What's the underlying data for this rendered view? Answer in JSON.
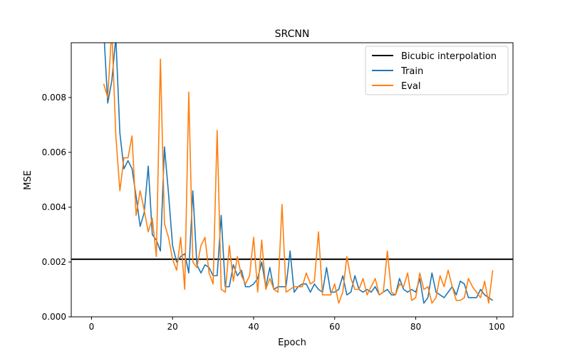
{
  "chart_data": {
    "type": "line",
    "title": "SRCNN",
    "xlabel": "Epoch",
    "ylabel": "MSE",
    "xlim": [
      -5,
      104
    ],
    "ylim": [
      0,
      0.01
    ],
    "xticks": [
      0,
      20,
      40,
      60,
      80,
      100
    ],
    "xtick_labels": [
      "0",
      "20",
      "40",
      "60",
      "80",
      "100"
    ],
    "yticks": [
      0,
      0.002,
      0.004,
      0.006,
      0.008
    ],
    "ytick_labels": [
      "0.000",
      "0.002",
      "0.004",
      "0.006",
      "0.008"
    ],
    "grid": false,
    "legend_position": "top-right",
    "hline": {
      "name": "Bicubic interpolation",
      "value": 0.0021,
      "color": "#000000"
    },
    "series": [
      {
        "name": "Train",
        "color": "#1f77b4",
        "x": [
          3,
          4,
          5,
          6,
          7,
          8,
          9,
          10,
          11,
          12,
          13,
          14,
          15,
          16,
          17,
          18,
          19,
          20,
          21,
          22,
          23,
          24,
          25,
          26,
          27,
          28,
          29,
          30,
          31,
          32,
          33,
          34,
          35,
          36,
          37,
          38,
          39,
          40,
          41,
          42,
          43,
          44,
          45,
          46,
          47,
          48,
          49,
          50,
          51,
          52,
          53,
          54,
          55,
          56,
          57,
          58,
          59,
          60,
          61,
          62,
          63,
          64,
          65,
          66,
          67,
          68,
          69,
          70,
          71,
          72,
          73,
          74,
          75,
          76,
          77,
          78,
          79,
          80,
          81,
          82,
          83,
          84,
          85,
          86,
          87,
          88,
          89,
          90,
          91,
          92,
          93,
          94,
          95,
          96,
          97,
          98,
          99
        ],
        "values": [
          0.0105,
          0.0078,
          0.0086,
          0.0102,
          0.0067,
          0.0054,
          0.0057,
          0.0054,
          0.0044,
          0.0033,
          0.0038,
          0.0055,
          0.003,
          0.0028,
          0.0024,
          0.0062,
          0.0045,
          0.0026,
          0.002,
          0.0022,
          0.0023,
          0.0016,
          0.0046,
          0.0019,
          0.0016,
          0.0019,
          0.0018,
          0.0015,
          0.0015,
          0.0037,
          0.0011,
          0.0011,
          0.0019,
          0.0015,
          0.0017,
          0.0011,
          0.0011,
          0.0012,
          0.0014,
          0.002,
          0.0011,
          0.0018,
          0.001,
          0.0011,
          0.0011,
          0.0011,
          0.0024,
          0.0009,
          0.0011,
          0.0012,
          0.0012,
          0.0009,
          0.0012,
          0.001,
          0.0009,
          0.0018,
          0.0009,
          0.0009,
          0.001,
          0.0015,
          0.0008,
          0.0009,
          0.0015,
          0.001,
          0.0009,
          0.001,
          0.0009,
          0.0011,
          0.0008,
          0.0009,
          0.001,
          0.0008,
          0.0008,
          0.0014,
          0.001,
          0.0009,
          0.001,
          0.0009,
          0.0014,
          0.0005,
          0.0007,
          0.0016,
          0.0009,
          0.0008,
          0.0007,
          0.0009,
          0.0011,
          0.0008,
          0.0013,
          0.0012,
          0.0007,
          0.0007,
          0.0007,
          0.001,
          0.0008,
          0.0007,
          0.0006
        ]
      },
      {
        "name": "Eval",
        "color": "#ff7f0e",
        "x": [
          3,
          4,
          5,
          6,
          7,
          8,
          9,
          10,
          11,
          12,
          13,
          14,
          15,
          16,
          17,
          18,
          19,
          20,
          21,
          22,
          23,
          24,
          25,
          26,
          27,
          28,
          29,
          30,
          31,
          32,
          33,
          34,
          35,
          36,
          37,
          38,
          39,
          40,
          41,
          42,
          43,
          44,
          45,
          46,
          47,
          48,
          49,
          50,
          51,
          52,
          53,
          54,
          55,
          56,
          57,
          58,
          59,
          60,
          61,
          62,
          63,
          64,
          65,
          66,
          67,
          68,
          69,
          70,
          71,
          72,
          73,
          74,
          75,
          76,
          77,
          78,
          79,
          80,
          81,
          82,
          83,
          84,
          85,
          86,
          87,
          88,
          89,
          90,
          91,
          92,
          93,
          94,
          95,
          96,
          97,
          98,
          99
        ],
        "values": [
          0.0085,
          0.008,
          0.0105,
          0.0066,
          0.0046,
          0.0058,
          0.0058,
          0.0066,
          0.0037,
          0.0046,
          0.0039,
          0.0031,
          0.0036,
          0.0022,
          0.0094,
          0.0034,
          0.0029,
          0.0021,
          0.0017,
          0.0029,
          0.001,
          0.0082,
          0.002,
          0.0018,
          0.0026,
          0.0029,
          0.0016,
          0.0012,
          0.0068,
          0.001,
          0.0009,
          0.0026,
          0.0013,
          0.0022,
          0.0015,
          0.0012,
          0.0015,
          0.0029,
          0.0009,
          0.0028,
          0.001,
          0.0014,
          0.001,
          0.0009,
          0.0041,
          0.0009,
          0.001,
          0.0011,
          0.0011,
          0.0011,
          0.0016,
          0.0012,
          0.0013,
          0.0031,
          0.0008,
          0.0008,
          0.0008,
          0.0012,
          0.0005,
          0.0009,
          0.0022,
          0.0014,
          0.001,
          0.001,
          0.0014,
          0.0008,
          0.0011,
          0.0014,
          0.0008,
          0.0009,
          0.0024,
          0.0009,
          0.0008,
          0.0012,
          0.0011,
          0.0016,
          0.0006,
          0.0007,
          0.0016,
          0.001,
          0.0011,
          0.0005,
          0.0007,
          0.0015,
          0.0011,
          0.0017,
          0.0011,
          0.0006,
          0.0006,
          0.0007,
          0.0014,
          0.0011,
          0.0009,
          0.0007,
          0.0013,
          0.0005,
          0.0017
        ]
      }
    ]
  }
}
